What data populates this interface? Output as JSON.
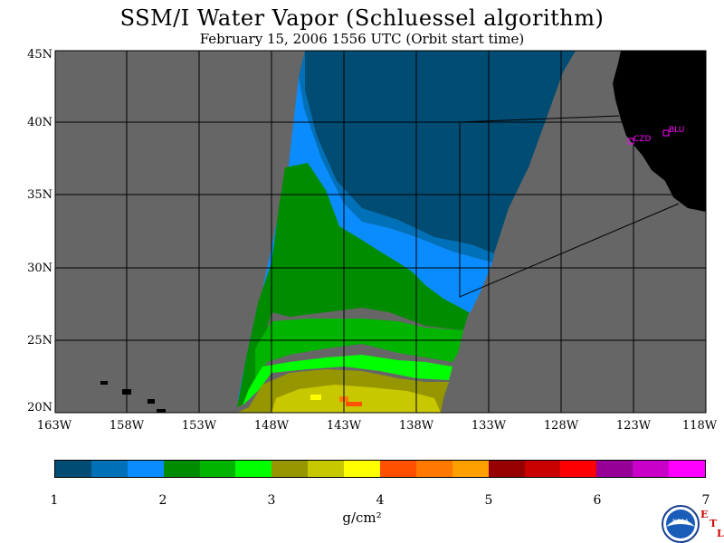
{
  "title": "SSM/I Water Vapor (Schluessel algorithm)",
  "subtitle": "February 15, 2006  1556 UTC  (Orbit start time)",
  "lat_labels": [
    "45N",
    "40N",
    "35N",
    "30N",
    "25N",
    "20N"
  ],
  "lon_labels": [
    "163W",
    "158W",
    "153W",
    "148W",
    "143W",
    "138W",
    "133W",
    "128W",
    "123W",
    "118W"
  ],
  "stations": [
    {
      "label": "CZD",
      "color": "#ff00ff"
    },
    {
      "label": "BLU",
      "color": "#ff00ff"
    }
  ],
  "colorbar": {
    "unit": "g/cm²",
    "ticks": [
      "1",
      "2",
      "3",
      "4",
      "5",
      "6",
      "7"
    ],
    "range": [
      1,
      7
    ],
    "colors": [
      "#004c73",
      "#0070b8",
      "#0a8cff",
      "#008c00",
      "#00b400",
      "#00ff00",
      "#969600",
      "#c8c800",
      "#ffff00",
      "#ff5000",
      "#ff7800",
      "#ffa000",
      "#960000",
      "#c80000",
      "#ff0000",
      "#960096",
      "#c800c8",
      "#ff00ff"
    ]
  },
  "map_colors": {
    "ocean_no_data": "#666666",
    "land": "#000000",
    "grid": "#000000"
  },
  "logo": {
    "name": "noaa-logo",
    "text": "NOAA"
  },
  "etl": {
    "e": "E",
    "t": "T",
    "l": "L"
  }
}
